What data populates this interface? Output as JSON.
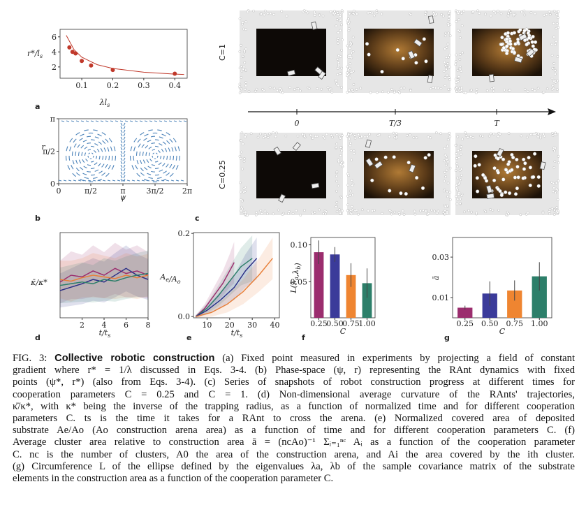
{
  "chart_data": [
    {
      "type": "scatter",
      "label": "a",
      "xlabel": [
        {
          "t": "λl",
          "sub": "s"
        }
      ],
      "ylabel": [
        {
          "t": "r*/l",
          "sub": "s"
        }
      ],
      "xlim": [
        0.03,
        0.44
      ],
      "ylim": [
        0.5,
        7
      ],
      "xticks": [
        0.1,
        0.2,
        0.3,
        0.4
      ],
      "yticks": [
        2,
        4,
        6
      ],
      "series": [
        {
          "kind": "markers",
          "color": "#c0392b",
          "x": [
            0.06,
            0.07,
            0.08,
            0.1,
            0.13,
            0.2,
            0.4
          ],
          "values": [
            4.6,
            4.0,
            3.8,
            2.8,
            2.2,
            1.6,
            1.1
          ]
        },
        {
          "kind": "line",
          "color": "#c0392b",
          "x": [
            0.05,
            0.075,
            0.1,
            0.15,
            0.2,
            0.3,
            0.4,
            0.43
          ],
          "values": [
            6.2,
            4.3,
            3.3,
            2.3,
            1.8,
            1.3,
            1.05,
            1.0
          ]
        }
      ]
    },
    {
      "type": "streamplot",
      "label": "b",
      "color": "#2f6fae",
      "xlabel": [
        {
          "t": "ψ"
        }
      ],
      "ylabel": [
        {
          "t": "r"
        }
      ],
      "xlim": [
        0,
        6.2832
      ],
      "ylim": [
        0,
        3.1416
      ],
      "xticks": [
        0,
        {
          "value": 1.5708,
          "label": "π/2"
        },
        {
          "value": 3.1416,
          "label": "π"
        },
        {
          "value": 4.7124,
          "label": "3π/2"
        },
        {
          "value": 6.2832,
          "label": "2π"
        }
      ],
      "yticks": [
        0,
        {
          "value": 1.5708,
          "label": "π/2"
        },
        {
          "value": 3.1416,
          "label": "π"
        }
      ]
    },
    {
      "type": "line",
      "label": "d",
      "xlabel": [
        {
          "t": "t/t",
          "sub": "s"
        }
      ],
      "ylabel": [
        {
          "t": "κ̄/κ*"
        }
      ],
      "xlim": [
        0,
        8
      ],
      "ylim": [
        0,
        1
      ],
      "xticks": [
        2,
        4,
        6,
        8
      ],
      "x": [
        0,
        1,
        2,
        3,
        4,
        5,
        6,
        7,
        8
      ],
      "series": [
        {
          "color": "#9b2d6e",
          "values": [
            0.42,
            0.5,
            0.48,
            0.55,
            0.5,
            0.58,
            0.52,
            0.55,
            0.5
          ],
          "errors": [
            0.25,
            0.28,
            0.26,
            0.3,
            0.27,
            0.3,
            0.28,
            0.3,
            0.27
          ]
        },
        {
          "color": "#2b2f86",
          "values": [
            0.32,
            0.36,
            0.4,
            0.45,
            0.42,
            0.5,
            0.58,
            0.5,
            0.45
          ],
          "errors": [
            0.2,
            0.22,
            0.24,
            0.25,
            0.24,
            0.26,
            0.27,
            0.25,
            0.24
          ]
        },
        {
          "color": "#e8803a",
          "values": [
            0.45,
            0.43,
            0.47,
            0.5,
            0.48,
            0.46,
            0.5,
            0.47,
            0.5
          ],
          "errors": [
            0.22,
            0.24,
            0.23,
            0.26,
            0.25,
            0.24,
            0.26,
            0.25,
            0.25
          ]
        },
        {
          "color": "#2d7f6a",
          "values": [
            0.38,
            0.4,
            0.42,
            0.4,
            0.45,
            0.43,
            0.47,
            0.5,
            0.52
          ],
          "errors": [
            0.21,
            0.22,
            0.23,
            0.22,
            0.25,
            0.24,
            0.25,
            0.26,
            0.27
          ]
        }
      ]
    },
    {
      "type": "line",
      "label": "e",
      "xlabel": [
        {
          "t": "t/t",
          "sub": "s"
        }
      ],
      "ylabel": [
        {
          "t": "A",
          "sub": "e"
        },
        {
          "t": "/A",
          "sub": "o"
        }
      ],
      "xlim": [
        4,
        42
      ],
      "ylim": [
        -0.003,
        0.202
      ],
      "xticks": [
        10,
        20,
        30,
        40
      ],
      "yticks": [
        {
          "value": 0,
          "label": "0.0"
        },
        {
          "value": 0.2,
          "label": "0.2"
        }
      ],
      "series": [
        {
          "color": "#9b2d6e",
          "x": [
            5,
            9,
            13,
            17,
            20,
            22
          ],
          "values": [
            0,
            0.02,
            0.05,
            0.08,
            0.11,
            0.13
          ],
          "errors": [
            0.003,
            0.01,
            0.02,
            0.03,
            0.04,
            0.05
          ]
        },
        {
          "color": "#2d7f6a",
          "x": [
            5,
            10,
            15,
            20,
            25,
            30
          ],
          "values": [
            0,
            0.02,
            0.05,
            0.085,
            0.12,
            0.14
          ],
          "errors": [
            0.003,
            0.012,
            0.025,
            0.035,
            0.045,
            0.055
          ]
        },
        {
          "color": "#2b2f86",
          "x": [
            5,
            10,
            16,
            22,
            27,
            32
          ],
          "values": [
            0,
            0.015,
            0.04,
            0.07,
            0.11,
            0.14
          ],
          "errors": [
            0.003,
            0.01,
            0.02,
            0.03,
            0.04,
            0.05
          ]
        },
        {
          "color": "#e8803a",
          "x": [
            5,
            12,
            19,
            26,
            33,
            39
          ],
          "values": [
            0,
            0.01,
            0.03,
            0.06,
            0.1,
            0.14
          ],
          "errors": [
            0.003,
            0.01,
            0.02,
            0.03,
            0.04,
            0.05
          ]
        }
      ]
    },
    {
      "type": "bar",
      "label": "f",
      "xlabel": [
        {
          "t": "C"
        }
      ],
      "ylabel": [
        {
          "t": "L(λ",
          "sub": "a"
        },
        {
          "t": ",λ",
          "sub": "b"
        },
        {
          "t": ")"
        }
      ],
      "categories": [
        "0.25",
        "0.50",
        "0.75",
        "1.00"
      ],
      "values": [
        0.09,
        0.087,
        0.059,
        0.048
      ],
      "errors": [
        0.016,
        0.01,
        0.016,
        0.02
      ],
      "colors": [
        "#9b2d6e",
        "#3b3b9a",
        "#ef8531",
        "#2d7f6a"
      ],
      "ylim": [
        0.001,
        0.11
      ],
      "yticks": [
        0.05,
        {
          "value": 0.1,
          "label": "0.10"
        }
      ]
    },
    {
      "type": "bar",
      "label": "g",
      "xlabel": [
        {
          "t": "C"
        }
      ],
      "ylabel": [
        {
          "t": "ā"
        }
      ],
      "categories": [
        "0.25",
        "0.50",
        "0.75",
        "1.00"
      ],
      "values": [
        0.005,
        0.012,
        0.0135,
        0.0205
      ],
      "errors": [
        0.001,
        0.006,
        0.005,
        0.007
      ],
      "colors": [
        "#9b2d6e",
        "#3b3b9a",
        "#ef8531",
        "#2d7f6a"
      ],
      "ylim": [
        0,
        0.0397
      ],
      "yticks": [
        0.01,
        0.03
      ]
    }
  ],
  "snapshots": {
    "label": "c",
    "rows": [
      "C=1",
      "C=0.25"
    ],
    "times": [
      "0",
      "T/3",
      "T"
    ]
  },
  "caption": {
    "label": "FIG. 3:",
    "title": "Collective robotic construction",
    "lines": [
      "(a) Fixed point measured in experiments by projecting a field of constant",
      "gradient where r* = 1/λ discussed in Eqs. 3-4. (b) Phase-space (ψ, r) representing the RAnt dynamics with fixed",
      "points (ψ*, r*) (also from Eqs. 3-4). (c) Series of snapshots of robot construction progress at different times for",
      "cooperation parameters C = 0.25 and C = 1. (d) Non-dimensional average curvature of the RAnts' trajectories,",
      "κ̄/κ*, with κ* being the inverse of the trapping radius, as a function of normalized time and for different cooperation",
      "parameters C. ts is the time it takes for a RAnt to cross the arena. (e) Normalized covered area of deposited",
      "substrate Ae/Ao (Ao construction arena area) as a function of time and for different cooperation parameters C. (f)",
      "Average cluster area relative to construction area ā = (ncAo)⁻¹ Σᵢ₌₁ⁿᶜ Aᵢ as a function of the cooperation parameter",
      "C. nc is the number of clusters, A0 the area of the construction arena, and Ai the area covered by the ith cluster.",
      "(g) Circumference L of the ellipse defined by the eigenvalues λa, λb of the sample covariance matrix of the substrate",
      "elements in the construction area as a function of the cooperation parameter C."
    ]
  }
}
